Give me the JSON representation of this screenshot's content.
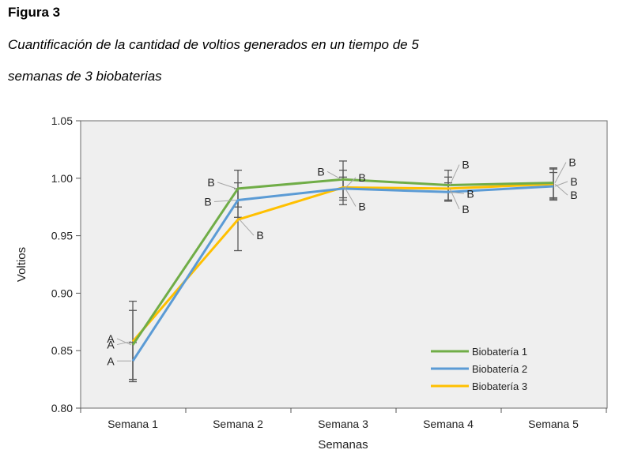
{
  "figure": {
    "label": "Figura 3",
    "caption_line1": "Cuantificación de la cantidad de voltios generados en un tiempo de 5",
    "caption_line2": "semanas de 3 biobaterias"
  },
  "chart_data": {
    "type": "line",
    "xlabel": "Semanas",
    "ylabel": "Voltios",
    "categories": [
      "Semana 1",
      "Semana 2",
      "Semana 3",
      "Semana 4",
      "Semana 5"
    ],
    "ylim": [
      0.8,
      1.05
    ],
    "yticks": [
      "0.80",
      "0.85",
      "0.90",
      "0.95",
      "1.00",
      "1.05"
    ],
    "grid": false,
    "legend_position": "bottom-right",
    "series": [
      {
        "name": "Biobatería 1",
        "color": "#70ad47",
        "values": [
          0.855,
          0.991,
          0.999,
          0.994,
          0.996
        ],
        "err": [
          0.03,
          0.016,
          0.016,
          0.013,
          0.013
        ],
        "letters": [
          "A",
          "B",
          "B",
          "B",
          "B"
        ]
      },
      {
        "name": "Biobatería 2",
        "color": "#5b9bd5",
        "values": [
          0.841,
          0.981,
          0.991,
          0.988,
          0.993
        ],
        "err": [
          0.016,
          0.015,
          0.01,
          0.008,
          0.012
        ],
        "letters": [
          "A",
          "B",
          "B",
          "B",
          "B"
        ]
      },
      {
        "name": "Biobatería 3",
        "color": "#ffc000",
        "values": [
          0.858,
          0.964,
          0.992,
          0.991,
          0.995
        ],
        "err": [
          0.035,
          0.027,
          0.015,
          0.01,
          0.013
        ],
        "letters": [
          "A",
          "B",
          "B",
          "B",
          "B"
        ]
      }
    ]
  }
}
